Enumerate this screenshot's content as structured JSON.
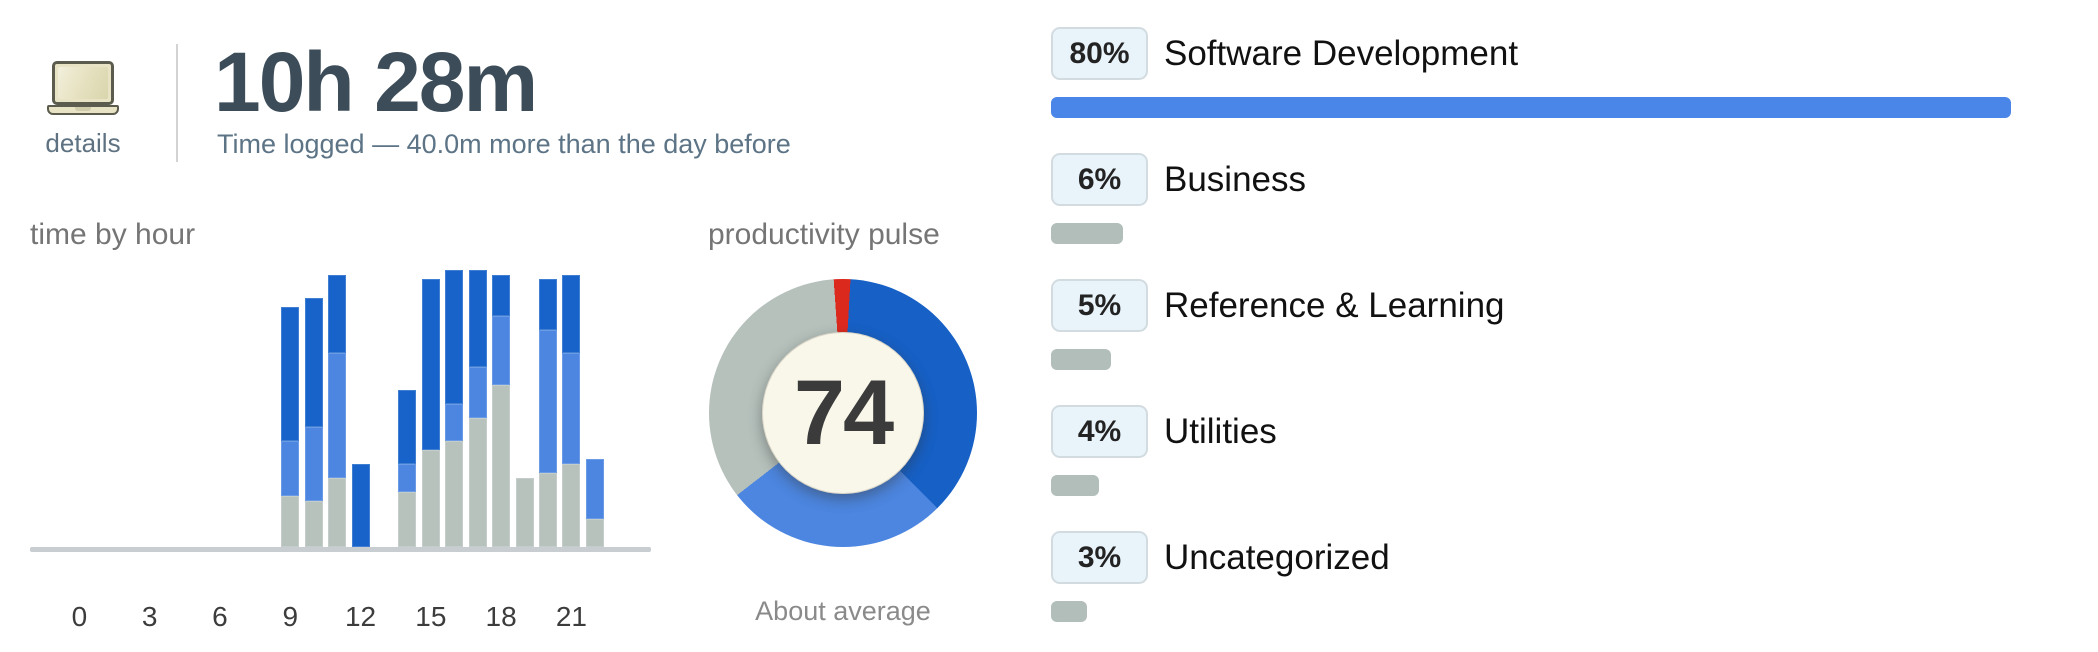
{
  "header": {
    "details_label": "details",
    "time_total": "10h 28m",
    "subtitle": "Time logged — 40.0m more than the day before"
  },
  "hour_chart": {
    "title": "time by hour"
  },
  "pulse": {
    "title": "productivity pulse",
    "score": "74",
    "caption": "About average"
  },
  "categories": [
    {
      "pct_label": "80%",
      "pct": 80,
      "label": "Software Development",
      "bar_color": "#4a86e8"
    },
    {
      "pct_label": "6%",
      "pct": 6,
      "label": "Business",
      "bar_color": "#b2beb9"
    },
    {
      "pct_label": "5%",
      "pct": 5,
      "label": "Reference & Learning",
      "bar_color": "#b2beb9"
    },
    {
      "pct_label": "4%",
      "pct": 4,
      "label": "Utilities",
      "bar_color": "#b2beb9"
    },
    {
      "pct_label": "3%",
      "pct": 3,
      "label": "Uncategorized",
      "bar_color": "#b2beb9"
    }
  ],
  "colors": {
    "very_productive": "#1763c9",
    "productive": "#4c86e0",
    "neutral": "#b7c2bd",
    "very_distracting": "#dc291e",
    "axis_line": "#c8cdd1",
    "category_bar_blue": "#4a86e8",
    "category_bar_gray": "#b2beb9",
    "badge_background": "#e9f3fa"
  },
  "chart_data": [
    {
      "type": "bar",
      "title": "time by hour",
      "stacked": true,
      "x_unit": "hour of day",
      "y_unit": "minutes (estimated, no y-axis shown)",
      "ylim": [
        0,
        60
      ],
      "grid": false,
      "legend": false,
      "categories": [
        0,
        1,
        2,
        3,
        4,
        5,
        6,
        7,
        8,
        9,
        10,
        11,
        12,
        13,
        14,
        15,
        16,
        17,
        18,
        19,
        20,
        21,
        22,
        23
      ],
      "x_ticks": [
        0,
        3,
        6,
        9,
        12,
        15,
        18,
        21
      ],
      "series": [
        {
          "name": "neutral",
          "color": "#b7c2bd",
          "values": [
            0,
            0,
            0,
            0,
            0,
            0,
            0,
            0,
            0,
            11,
            10,
            15,
            0,
            0,
            12,
            21,
            23,
            28,
            35,
            15,
            16,
            18,
            6,
            0
          ]
        },
        {
          "name": "productive",
          "color": "#4c86e0",
          "values": [
            0,
            0,
            0,
            0,
            0,
            0,
            0,
            0,
            0,
            12,
            16,
            27,
            0,
            0,
            6,
            0,
            8,
            11,
            15,
            0,
            31,
            24,
            13,
            0
          ]
        },
        {
          "name": "very productive",
          "color": "#1763c9",
          "values": [
            0,
            0,
            0,
            0,
            0,
            0,
            0,
            0,
            0,
            29,
            28,
            17,
            18,
            0,
            16,
            37,
            29,
            21,
            9,
            0,
            11,
            17,
            0,
            0
          ]
        }
      ]
    },
    {
      "type": "pie",
      "variant": "donut",
      "title": "productivity pulse",
      "center_score": 74,
      "caption": "About average",
      "start_angle_deg": -4,
      "slices": [
        {
          "label": "very distracting",
          "pct": 2.0,
          "color": "#dc291e"
        },
        {
          "label": "very productive",
          "pct": 36.7,
          "color": "#1660c6"
        },
        {
          "label": "productive",
          "pct": 26.9,
          "color": "#4c86e0"
        },
        {
          "label": "neutral",
          "pct": 34.4,
          "color": "#b6c1bc"
        }
      ]
    }
  ]
}
